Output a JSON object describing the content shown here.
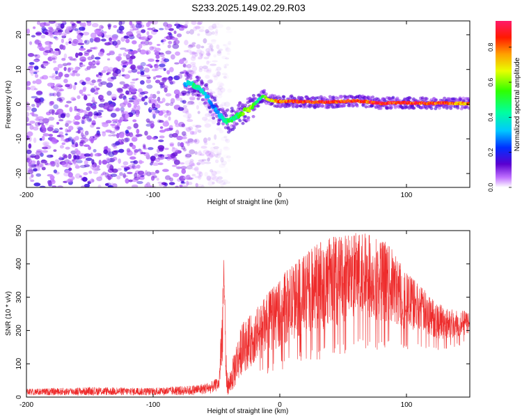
{
  "figure": {
    "title": "S233.2025.149.02.29.R03"
  },
  "chart_data": [
    {
      "type": "heatmap",
      "xlabel": "Height of straight line (km)",
      "ylabel": "Frequency (Hz)",
      "xlim": [
        -200,
        150
      ],
      "ylim": [
        -24,
        24
      ],
      "x_ticks": [
        -200,
        -100,
        0,
        100
      ],
      "y_ticks": [
        -20,
        -10,
        0,
        10,
        20
      ],
      "grid": false,
      "colorbar": {
        "label": "Normalized spectral amplitude",
        "range": [
          0.0,
          0.95
        ],
        "ticks": [
          0.0,
          0.2,
          0.4,
          0.6,
          0.8
        ],
        "colormap": "rainbow (violet-blue-cyan-green-yellow-red-magenta)"
      },
      "noise_region_x": [
        -200,
        -75
      ],
      "ridge": {
        "x": [
          -75,
          -68,
          -62,
          -57,
          -52,
          -48,
          -44,
          -40,
          -36,
          -32,
          -28,
          -24,
          -20,
          -16,
          -13,
          -10,
          -6,
          0,
          10,
          20,
          30,
          40,
          50,
          60,
          70,
          80,
          90,
          100,
          110,
          120,
          130,
          140,
          150
        ],
        "frequency": [
          6,
          5.5,
          4,
          2,
          -1,
          -3,
          -4.5,
          -5,
          -4,
          -3,
          -2,
          -1.5,
          0,
          1.5,
          2.5,
          1.5,
          1,
          0.8,
          0.8,
          0.7,
          0.6,
          0.6,
          0.8,
          1,
          0.6,
          0.2,
          0.4,
          0.4,
          0.3,
          0.2,
          0.3,
          0.2,
          0.2
        ],
        "amplitude": [
          0.3,
          0.45,
          0.4,
          0.35,
          0.25,
          0.35,
          0.4,
          0.5,
          0.45,
          0.5,
          0.6,
          0.65,
          0.6,
          0.4,
          0.55,
          0.65,
          0.7,
          0.8,
          0.85,
          0.9,
          0.85,
          0.9,
          0.85,
          0.9,
          0.85,
          0.9,
          0.85,
          0.9,
          0.88,
          0.85,
          0.85,
          0.8,
          0.8
        ]
      }
    },
    {
      "type": "line",
      "xlabel": "Height of straight line (km)",
      "ylabel": "SNR (10 * v/v)",
      "xlim": [
        -200,
        150
      ],
      "ylim": [
        0,
        500
      ],
      "x_ticks": [
        -200,
        -100,
        0,
        100
      ],
      "y_ticks": [
        0,
        100,
        200,
        300,
        400,
        500
      ],
      "grid": false,
      "series": [
        {
          "color": "#ee2c2c",
          "envelope_x": [
            -200,
            -150,
            -100,
            -70,
            -55,
            -48,
            -44,
            -43,
            -42,
            -40,
            -35,
            -30,
            -20,
            -10,
            0,
            10,
            20,
            30,
            40,
            50,
            60,
            70,
            80,
            90,
            100,
            110,
            120,
            130,
            140,
            150
          ],
          "envelope_low": [
            5,
            5,
            5,
            5,
            10,
            20,
            150,
            60,
            10,
            5,
            30,
            70,
            100,
            130,
            150,
            170,
            190,
            200,
            210,
            220,
            230,
            230,
            230,
            220,
            200,
            200,
            180,
            170,
            180,
            190
          ],
          "envelope_high": [
            25,
            30,
            28,
            35,
            45,
            60,
            425,
            250,
            90,
            60,
            160,
            220,
            260,
            310,
            360,
            400,
            430,
            470,
            480,
            490,
            500,
            490,
            480,
            440,
            380,
            340,
            300,
            270,
            260,
            260
          ]
        }
      ]
    }
  ]
}
